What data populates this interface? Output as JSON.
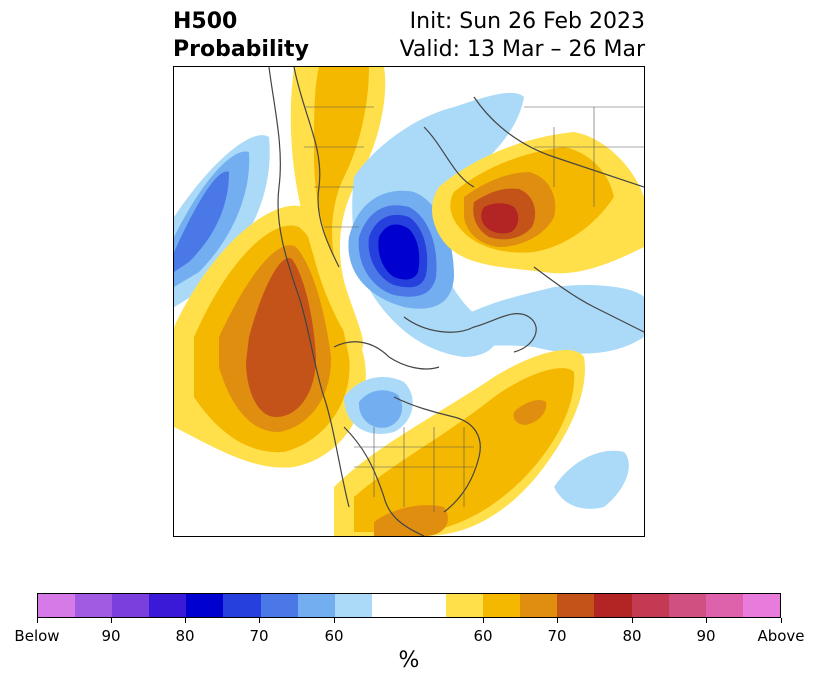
{
  "title": {
    "left_line1": "H500",
    "left_line2": "Probability",
    "right_line1": "Init: Sun 26 Feb 2023",
    "right_line2": "Valid: 13 Mar – 26 Mar"
  },
  "colorbar": {
    "unit": "%",
    "colors": [
      "#d67ae8",
      "#a15be3",
      "#7a3fdc",
      "#3a1ad6",
      "#0000cf",
      "#2540dc",
      "#4a78e6",
      "#73aef0",
      "#aadaf8",
      "#ffffff",
      "#ffffff",
      "#ffe04a",
      "#f5b800",
      "#e08e10",
      "#c4531a",
      "#b32424",
      "#c33a52",
      "#cf5081",
      "#dd61ab",
      "#e87bdc"
    ],
    "ticks": [
      "Below",
      "90",
      "80",
      "70",
      "60",
      "60",
      "70",
      "80",
      "90",
      "Above"
    ]
  },
  "map": {
    "palette": {
      "blue_light": "#aadaf8",
      "blue_mid": "#73aef0",
      "blue_med": "#4a78e6",
      "blue_dark": "#2540dc",
      "blue_deep": "#0000cf",
      "yellow": "#ffe04a",
      "orange_light": "#f5b800",
      "orange": "#e08e10",
      "orange_dark": "#c4531a",
      "red": "#b32424",
      "coast": "#444444"
    }
  }
}
